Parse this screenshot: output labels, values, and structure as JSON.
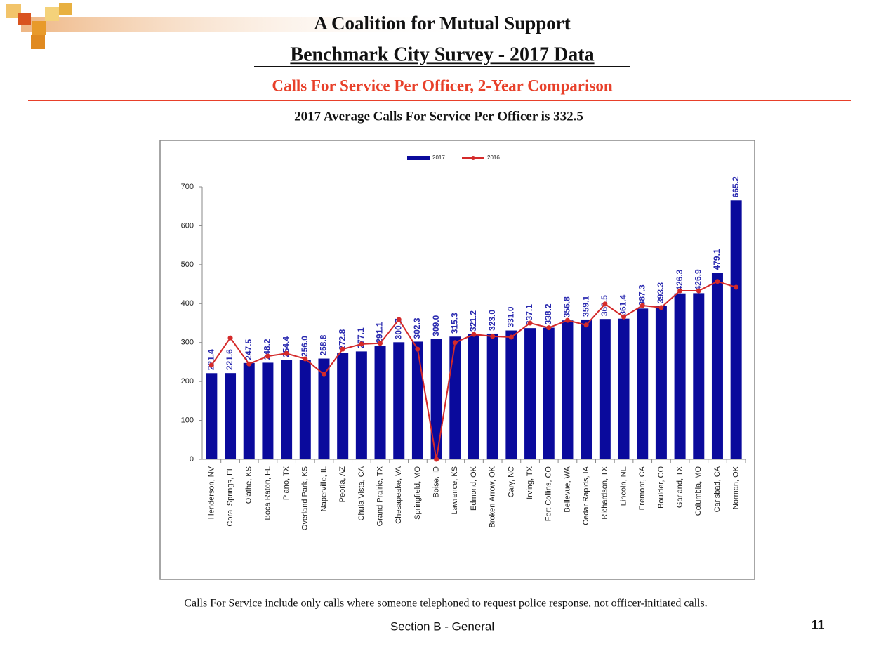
{
  "slide": {
    "organization": "A Coalition for Mutual Support",
    "title": "Benchmark City Survey - 2017 Data",
    "subtitle": "Calls For Service Per Officer, 2-Year Comparison",
    "average_note": "2017 Average Calls For Service Per Officer is 332.5",
    "footnote": "Calls For Service include only calls where someone telephoned to request police response, not officer-initiated calls.",
    "section": "Section B - General",
    "page_number": "11"
  },
  "chart_data": {
    "type": "bar",
    "categories": [
      "Henderson, NV",
      "Coral Springs, FL",
      "Olathe, KS",
      "Boca Raton, FL",
      "Plano, TX",
      "Overland Park, KS",
      "Naperville, IL",
      "Peoria, AZ",
      "Chula Vista, CA",
      "Grand Prairie, TX",
      "Chesapeake, VA",
      "Springfield, MO",
      "Boise, ID",
      "Lawrence, KS",
      "Edmond, OK",
      "Broken Arrow, OK",
      "Cary, NC",
      "Irving, TX",
      "Fort Collins, CO",
      "Bellevue, WA",
      "Cedar Rapids, IA",
      "Richardson, TX",
      "Lincoln, NE",
      "Fremont, CA",
      "Boulder, CO",
      "Garland, TX",
      "Columbia, MO",
      "Carlsbad, CA",
      "Norman, OK"
    ],
    "series": [
      {
        "name": "2017",
        "type": "bar",
        "color": "#0a0a9c",
        "values": [
          221.4,
          221.6,
          247.5,
          248.2,
          254.4,
          256.0,
          258.8,
          272.8,
          277.1,
          291.1,
          300.7,
          302.3,
          309.0,
          315.3,
          321.2,
          323.0,
          331.0,
          337.1,
          338.2,
          356.8,
          359.1,
          360.5,
          361.4,
          387.3,
          393.3,
          426.3,
          426.9,
          479.1,
          665.2
        ],
        "value_labels": [
          "221.4",
          "221.6",
          "247.5",
          "248.2",
          "254.4",
          "256.0",
          "258.8",
          "272.8",
          "277.1",
          "291.1",
          "300.7",
          "302.3",
          "309.0",
          "315.3",
          "321.2",
          "323.0",
          "331.0",
          "337.1",
          "338.2",
          "356.8",
          "359.1",
          "360.5",
          "361.4",
          "387.3",
          "393.3",
          "426.3",
          "426.9",
          "479.1",
          "665.2"
        ]
      },
      {
        "name": "2016",
        "type": "line",
        "color": "#d42a2a",
        "values": [
          242,
          312,
          245,
          265,
          272,
          258,
          218,
          283,
          296,
          298,
          359,
          283,
          0,
          300,
          321,
          316,
          314,
          350,
          338,
          357,
          345,
          399,
          366,
          395,
          390,
          433,
          433,
          457,
          442
        ]
      }
    ],
    "ylim": [
      0,
      700
    ],
    "yticks": [
      0,
      100,
      200,
      300,
      400,
      500,
      600,
      700
    ],
    "grid": false,
    "legend": "top"
  }
}
